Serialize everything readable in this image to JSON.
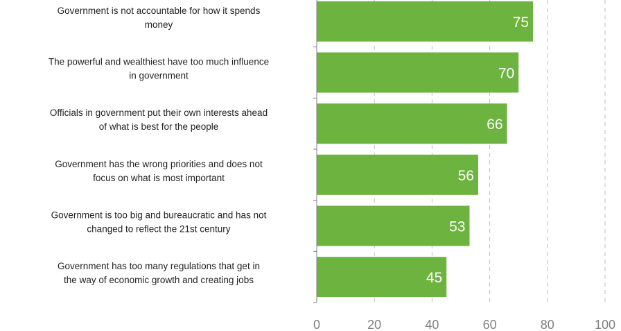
{
  "chart_data": {
    "type": "bar",
    "orientation": "horizontal",
    "categories": [
      [
        "Government is not accountable for how it spends",
        "money"
      ],
      [
        "The powerful and wealthiest have too much influence",
        "in government"
      ],
      [
        "Officials in government put their own interests ahead",
        "of what is best for the people"
      ],
      [
        "Government has the wrong priorities and does not",
        "focus on what is most important"
      ],
      [
        "Government is too big and bureaucratic and has not",
        "changed to reflect the 21st century"
      ],
      [
        "Government has too many regulations that get in",
        "the way of economic growth and creating jobs"
      ]
    ],
    "values": [
      75,
      70,
      66,
      56,
      53,
      45
    ],
    "data_labels": [
      "75",
      "70",
      "66",
      "56",
      "53",
      "45"
    ],
    "xlim": [
      0,
      100
    ],
    "xticks": [
      "0",
      "20",
      "40",
      "60",
      "80",
      "100"
    ],
    "grid": "vertical dashed",
    "bar_color": "#6db33f",
    "title": "",
    "xlabel": "",
    "ylabel": ""
  }
}
